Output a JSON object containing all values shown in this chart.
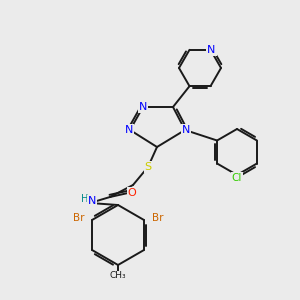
{
  "bg_color": "#ebebeb",
  "bond_color": "#1a1a1a",
  "atom_colors": {
    "N": "#0000ff",
    "O": "#ff2200",
    "S": "#cccc00",
    "Br": "#cc6600",
    "Cl": "#33cc00",
    "H": "#008888",
    "C": "#1a1a1a"
  },
  "figsize": [
    3.0,
    3.0
  ],
  "dpi": 100
}
